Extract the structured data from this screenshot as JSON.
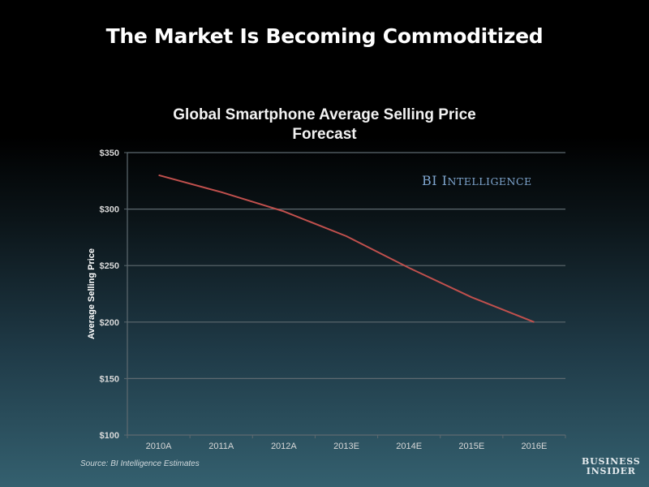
{
  "slide": {
    "title": "The Market Is Becoming Commoditized",
    "source": "Source: BI Intelligence Estimates",
    "logo_line1": "BUSINESS",
    "logo_line2": "INSIDER",
    "watermark": "BI Intelligence"
  },
  "colors": {
    "line": "#c0504d",
    "grid": "#5e6a70",
    "watermark": "#7fa6cf"
  },
  "chart_data": {
    "type": "line",
    "title": "Global Smartphone Average Selling Price Forecast",
    "title_line1": "Global Smartphone Average Selling Price",
    "title_line2": "Forecast",
    "xlabel": "",
    "ylabel": "Average Selling Price",
    "categories": [
      "2010A",
      "2011A",
      "2012A",
      "2013E",
      "2014E",
      "2015E",
      "2016E"
    ],
    "series": [
      {
        "name": "Average Selling Price",
        "values": [
          330,
          315,
          298,
          276,
          248,
          222,
          200
        ]
      }
    ],
    "ylim": [
      100,
      350
    ],
    "yticks": [
      100,
      150,
      200,
      250,
      300,
      350
    ],
    "ytick_labels": [
      "$100",
      "$150",
      "$200",
      "$250",
      "$300",
      "$350"
    ],
    "grid": true,
    "legend": "none"
  }
}
